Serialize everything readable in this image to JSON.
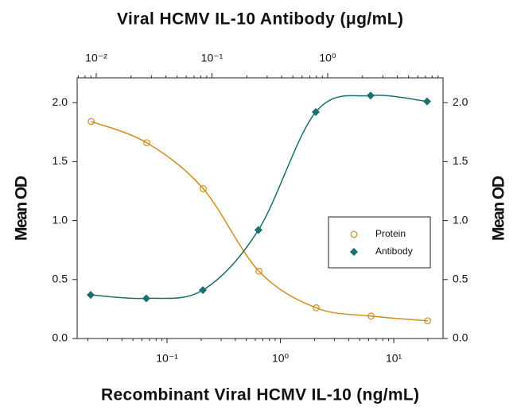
{
  "chart_data": {
    "type": "line",
    "title": "Viral HCMV IL-10 Antibody (μg/mL)",
    "x_label": "Recombinant Viral HCMV IL-10 (ng/mL)",
    "y_label": "Mean OD",
    "y2_label": "Mean OD",
    "xscale": "log",
    "x2scale": "log",
    "xlim": [
      0.0161,
      27.2
    ],
    "xticks": [
      {
        "value": 0.1,
        "label": "10⁻¹"
      },
      {
        "value": 1,
        "label": "10⁰"
      },
      {
        "value": 10,
        "label": "10¹"
      }
    ],
    "x2lim": [
      0.00684,
      9.93
    ],
    "x2ticks": [
      {
        "value": 0.01,
        "label": "10⁻²"
      },
      {
        "value": 0.1,
        "label": "10⁻¹"
      },
      {
        "value": 1,
        "label": "10⁰"
      }
    ],
    "ylim": [
      0,
      2.21
    ],
    "yticks": [
      {
        "value": 0,
        "label": "0.0"
      },
      0.5,
      {
        "value": 1,
        "label": "1.0"
      },
      1.5,
      {
        "value": 2,
        "label": "2.0"
      }
    ],
    "y2lim": [
      0,
      2.21
    ],
    "y2ticks": [
      {
        "value": 0,
        "label": "0.0"
      },
      0.5,
      {
        "value": 1,
        "label": "1.0"
      },
      1.5,
      {
        "value": 2,
        "label": "2.0"
      }
    ],
    "legend": "center-right",
    "series": [
      {
        "name": "Protein",
        "color": "#d38b1c",
        "marker": "open-circle",
        "xaxis": "x",
        "x": [
          0.0214,
          0.0662,
          0.2085,
          0.647,
          2.07,
          6.31,
          19.9
        ],
        "values": [
          1.84,
          1.66,
          1.27,
          0.57,
          0.26,
          0.19,
          0.15
        ]
      },
      {
        "name": "Antibody",
        "color": "#1b6f6c",
        "marker": "diamond",
        "xaxis": "x2",
        "x": [
          0.00895,
          0.0271,
          0.0834,
          0.252,
          0.789,
          2.35,
          7.23
        ],
        "values": [
          0.37,
          0.34,
          0.41,
          0.92,
          1.92,
          2.06,
          2.01
        ]
      }
    ]
  }
}
